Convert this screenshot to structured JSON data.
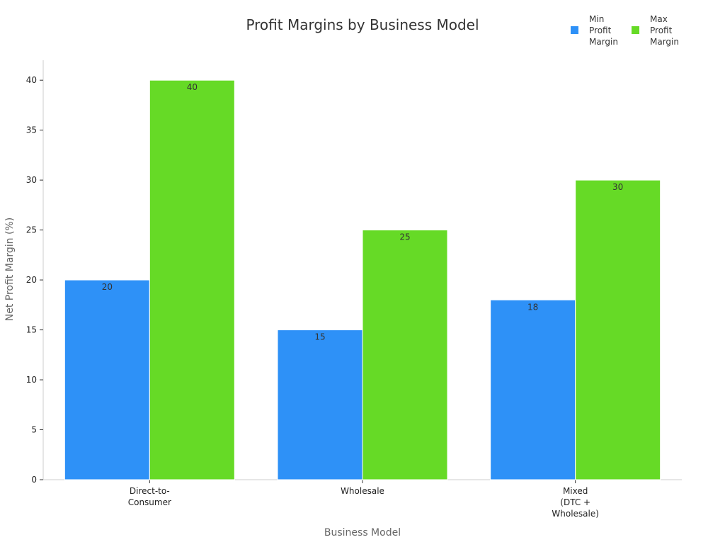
{
  "chart_data": {
    "type": "bar",
    "title": "Profit Margins by Business Model",
    "xlabel": "Business Model",
    "ylabel": "Net Profit Margin (%)",
    "categories": [
      [
        "Direct-to-",
        "Consumer"
      ],
      [
        "Wholesale"
      ],
      [
        "Mixed",
        "(DTC +",
        "Wholesale)"
      ]
    ],
    "series": [
      {
        "name": [
          "Min",
          "Profit",
          "Margin"
        ],
        "values": [
          20,
          15,
          18
        ],
        "color": "#2e91f7"
      },
      {
        "name": [
          "Max",
          "Profit",
          "Margin"
        ],
        "values": [
          40,
          25,
          30
        ],
        "color": "#66da26"
      }
    ],
    "ylim": [
      0,
      42
    ],
    "yticks": [
      0,
      5,
      10,
      15,
      20,
      25,
      30,
      35,
      40
    ],
    "grid": false,
    "legend_position": "top-right",
    "data_labels": true
  }
}
